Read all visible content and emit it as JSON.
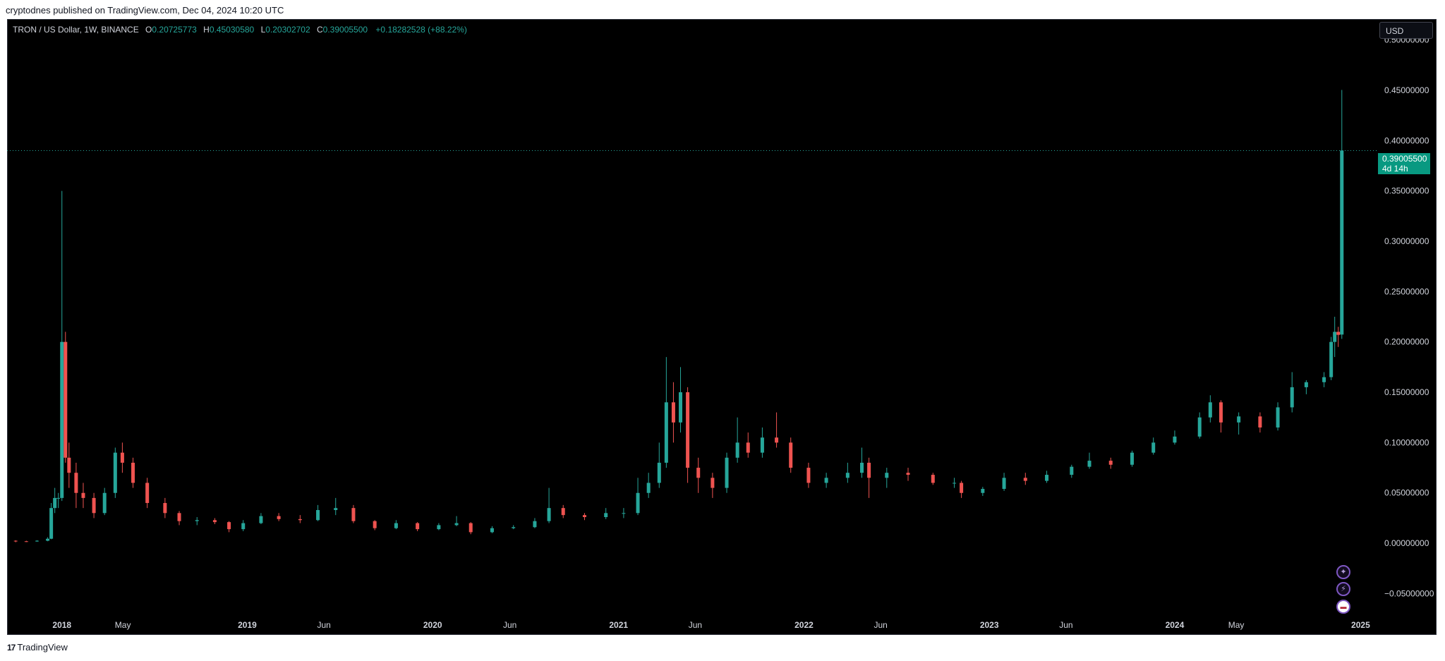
{
  "header": {
    "published_note": "cryptodnes published on TradingView.com, Dec 04, 2024 10:20 UTC"
  },
  "legend": {
    "symbol": "TRON / US Dollar, 1W, BINANCE",
    "o_label": "O",
    "o_value": "0.20725773",
    "h_label": "H",
    "h_value": "0.45030580",
    "l_label": "L",
    "l_value": "0.20302702",
    "c_label": "C",
    "c_value": "0.39005500",
    "change": "+0.18282528 (+88.22%)"
  },
  "currency_button": "USD",
  "price_tag": {
    "price": "0.39005500",
    "countdown": "4d 14h"
  },
  "footer": {
    "brand": "TradingView"
  },
  "side_icons": [
    "sparkle-icon",
    "lightning-icon",
    "us-flag-icon"
  ],
  "colors": {
    "up": "#26a69a",
    "down": "#ef5350",
    "background": "#000000",
    "axis_text": "#d1d4dc",
    "price_tag": "#089981"
  },
  "chart_data": {
    "type": "candlestick",
    "title": "TRON / US Dollar, 1W, BINANCE",
    "interval": "1W",
    "ylim": [
      -0.07,
      0.52
    ],
    "y_tick_values": [
      0.5,
      0.45,
      0.4,
      0.35,
      0.3,
      0.25,
      0.2,
      0.15,
      0.1,
      0.05,
      0.0,
      -0.05
    ],
    "y_tick_labels": [
      "0.50000000",
      "0.45000000",
      "0.40000000",
      "0.35000000",
      "0.30000000",
      "0.25000000",
      "0.20000000",
      "0.15000000",
      "0.10000000",
      "0.05000000",
      "0.00000000",
      "−0.05000000"
    ],
    "x_range": [
      "2017-09-15",
      "2025-01-31"
    ],
    "x_ticks": [
      {
        "date": "2018-01-01",
        "label": "2018",
        "bold": true
      },
      {
        "date": "2018-05-01",
        "label": "May",
        "bold": false
      },
      {
        "date": "2019-01-01",
        "label": "2019",
        "bold": true
      },
      {
        "date": "2019-06-01",
        "label": "Jun",
        "bold": false
      },
      {
        "date": "2020-01-01",
        "label": "2020",
        "bold": true
      },
      {
        "date": "2020-06-01",
        "label": "Jun",
        "bold": false
      },
      {
        "date": "2021-01-01",
        "label": "2021",
        "bold": true
      },
      {
        "date": "2021-06-01",
        "label": "Jun",
        "bold": false
      },
      {
        "date": "2022-01-01",
        "label": "2022",
        "bold": true
      },
      {
        "date": "2022-06-01",
        "label": "Jun",
        "bold": false
      },
      {
        "date": "2023-01-01",
        "label": "2023",
        "bold": true
      },
      {
        "date": "2023-06-01",
        "label": "Jun",
        "bold": false
      },
      {
        "date": "2024-01-01",
        "label": "2024",
        "bold": true
      },
      {
        "date": "2024-05-01",
        "label": "May",
        "bold": false
      },
      {
        "date": "2025-01-01",
        "label": "2025",
        "bold": true
      }
    ],
    "last_price": 0.390055,
    "series": [
      {
        "t": "2017-10-02",
        "o": 0.0025,
        "h": 0.003,
        "l": 0.001,
        "c": 0.002
      },
      {
        "t": "2017-10-23",
        "o": 0.002,
        "h": 0.0025,
        "l": 0.0012,
        "c": 0.0018
      },
      {
        "t": "2017-11-13",
        "o": 0.0018,
        "h": 0.003,
        "l": 0.0015,
        "c": 0.0025
      },
      {
        "t": "2017-12-04",
        "o": 0.0025,
        "h": 0.006,
        "l": 0.002,
        "c": 0.0045
      },
      {
        "t": "2017-12-11",
        "o": 0.0045,
        "h": 0.04,
        "l": 0.004,
        "c": 0.035
      },
      {
        "t": "2017-12-18",
        "o": 0.035,
        "h": 0.055,
        "l": 0.03,
        "c": 0.045
      },
      {
        "t": "2017-12-25",
        "o": 0.045,
        "h": 0.05,
        "l": 0.035,
        "c": 0.045
      },
      {
        "t": "2018-01-01",
        "o": 0.045,
        "h": 0.35,
        "l": 0.042,
        "c": 0.2
      },
      {
        "t": "2018-01-08",
        "o": 0.2,
        "h": 0.21,
        "l": 0.08,
        "c": 0.085
      },
      {
        "t": "2018-01-15",
        "o": 0.085,
        "h": 0.1,
        "l": 0.055,
        "c": 0.07
      },
      {
        "t": "2018-01-29",
        "o": 0.07,
        "h": 0.08,
        "l": 0.035,
        "c": 0.05
      },
      {
        "t": "2018-02-12",
        "o": 0.05,
        "h": 0.06,
        "l": 0.035,
        "c": 0.045
      },
      {
        "t": "2018-03-05",
        "o": 0.045,
        "h": 0.05,
        "l": 0.025,
        "c": 0.03
      },
      {
        "t": "2018-03-26",
        "o": 0.03,
        "h": 0.055,
        "l": 0.028,
        "c": 0.05
      },
      {
        "t": "2018-04-16",
        "o": 0.05,
        "h": 0.095,
        "l": 0.045,
        "c": 0.09
      },
      {
        "t": "2018-04-30",
        "o": 0.09,
        "h": 0.1,
        "l": 0.07,
        "c": 0.08
      },
      {
        "t": "2018-05-21",
        "o": 0.08,
        "h": 0.085,
        "l": 0.055,
        "c": 0.06
      },
      {
        "t": "2018-06-18",
        "o": 0.06,
        "h": 0.065,
        "l": 0.035,
        "c": 0.04
      },
      {
        "t": "2018-07-23",
        "o": 0.04,
        "h": 0.045,
        "l": 0.025,
        "c": 0.03
      },
      {
        "t": "2018-08-20",
        "o": 0.03,
        "h": 0.032,
        "l": 0.018,
        "c": 0.022
      },
      {
        "t": "2018-09-24",
        "o": 0.022,
        "h": 0.026,
        "l": 0.018,
        "c": 0.023
      },
      {
        "t": "2018-10-29",
        "o": 0.023,
        "h": 0.025,
        "l": 0.019,
        "c": 0.021
      },
      {
        "t": "2018-11-26",
        "o": 0.021,
        "h": 0.022,
        "l": 0.011,
        "c": 0.014
      },
      {
        "t": "2018-12-24",
        "o": 0.014,
        "h": 0.023,
        "l": 0.012,
        "c": 0.02
      },
      {
        "t": "2019-01-28",
        "o": 0.02,
        "h": 0.03,
        "l": 0.019,
        "c": 0.027
      },
      {
        "t": "2019-03-04",
        "o": 0.027,
        "h": 0.03,
        "l": 0.022,
        "c": 0.024
      },
      {
        "t": "2019-04-15",
        "o": 0.024,
        "h": 0.028,
        "l": 0.02,
        "c": 0.023
      },
      {
        "t": "2019-05-20",
        "o": 0.023,
        "h": 0.038,
        "l": 0.022,
        "c": 0.033
      },
      {
        "t": "2019-06-24",
        "o": 0.033,
        "h": 0.045,
        "l": 0.028,
        "c": 0.035
      },
      {
        "t": "2019-07-29",
        "o": 0.035,
        "h": 0.038,
        "l": 0.02,
        "c": 0.022
      },
      {
        "t": "2019-09-09",
        "o": 0.022,
        "h": 0.023,
        "l": 0.013,
        "c": 0.015
      },
      {
        "t": "2019-10-21",
        "o": 0.015,
        "h": 0.023,
        "l": 0.014,
        "c": 0.02
      },
      {
        "t": "2019-12-02",
        "o": 0.02,
        "h": 0.021,
        "l": 0.012,
        "c": 0.014
      },
      {
        "t": "2020-01-13",
        "o": 0.014,
        "h": 0.02,
        "l": 0.013,
        "c": 0.018
      },
      {
        "t": "2020-02-17",
        "o": 0.018,
        "h": 0.027,
        "l": 0.017,
        "c": 0.02
      },
      {
        "t": "2020-03-16",
        "o": 0.02,
        "h": 0.021,
        "l": 0.009,
        "c": 0.011
      },
      {
        "t": "2020-04-27",
        "o": 0.011,
        "h": 0.017,
        "l": 0.01,
        "c": 0.015
      },
      {
        "t": "2020-06-08",
        "o": 0.015,
        "h": 0.018,
        "l": 0.014,
        "c": 0.016
      },
      {
        "t": "2020-07-20",
        "o": 0.016,
        "h": 0.025,
        "l": 0.015,
        "c": 0.022
      },
      {
        "t": "2020-08-17",
        "o": 0.022,
        "h": 0.055,
        "l": 0.02,
        "c": 0.035
      },
      {
        "t": "2020-09-14",
        "o": 0.035,
        "h": 0.038,
        "l": 0.025,
        "c": 0.028
      },
      {
        "t": "2020-10-26",
        "o": 0.028,
        "h": 0.03,
        "l": 0.023,
        "c": 0.026
      },
      {
        "t": "2020-12-07",
        "o": 0.026,
        "h": 0.035,
        "l": 0.024,
        "c": 0.03
      },
      {
        "t": "2021-01-11",
        "o": 0.03,
        "h": 0.035,
        "l": 0.025,
        "c": 0.03
      },
      {
        "t": "2021-02-08",
        "o": 0.03,
        "h": 0.065,
        "l": 0.028,
        "c": 0.05
      },
      {
        "t": "2021-03-01",
        "o": 0.05,
        "h": 0.07,
        "l": 0.045,
        "c": 0.06
      },
      {
        "t": "2021-03-22",
        "o": 0.06,
        "h": 0.1,
        "l": 0.055,
        "c": 0.08
      },
      {
        "t": "2021-04-05",
        "o": 0.08,
        "h": 0.185,
        "l": 0.075,
        "c": 0.14
      },
      {
        "t": "2021-04-19",
        "o": 0.14,
        "h": 0.16,
        "l": 0.1,
        "c": 0.12
      },
      {
        "t": "2021-05-03",
        "o": 0.12,
        "h": 0.175,
        "l": 0.11,
        "c": 0.15
      },
      {
        "t": "2021-05-17",
        "o": 0.15,
        "h": 0.155,
        "l": 0.06,
        "c": 0.075
      },
      {
        "t": "2021-06-07",
        "o": 0.075,
        "h": 0.085,
        "l": 0.05,
        "c": 0.065
      },
      {
        "t": "2021-07-05",
        "o": 0.065,
        "h": 0.07,
        "l": 0.045,
        "c": 0.055
      },
      {
        "t": "2021-08-02",
        "o": 0.055,
        "h": 0.09,
        "l": 0.05,
        "c": 0.085
      },
      {
        "t": "2021-08-23",
        "o": 0.085,
        "h": 0.125,
        "l": 0.08,
        "c": 0.1
      },
      {
        "t": "2021-09-13",
        "o": 0.1,
        "h": 0.11,
        "l": 0.085,
        "c": 0.09
      },
      {
        "t": "2021-10-11",
        "o": 0.09,
        "h": 0.115,
        "l": 0.085,
        "c": 0.105
      },
      {
        "t": "2021-11-08",
        "o": 0.105,
        "h": 0.13,
        "l": 0.095,
        "c": 0.1
      },
      {
        "t": "2021-12-06",
        "o": 0.1,
        "h": 0.105,
        "l": 0.07,
        "c": 0.075
      },
      {
        "t": "2022-01-10",
        "o": 0.075,
        "h": 0.08,
        "l": 0.055,
        "c": 0.06
      },
      {
        "t": "2022-02-14",
        "o": 0.06,
        "h": 0.07,
        "l": 0.055,
        "c": 0.065
      },
      {
        "t": "2022-03-28",
        "o": 0.065,
        "h": 0.08,
        "l": 0.06,
        "c": 0.07
      },
      {
        "t": "2022-04-25",
        "o": 0.07,
        "h": 0.095,
        "l": 0.065,
        "c": 0.08
      },
      {
        "t": "2022-05-09",
        "o": 0.08,
        "h": 0.085,
        "l": 0.045,
        "c": 0.065
      },
      {
        "t": "2022-06-13",
        "o": 0.065,
        "h": 0.075,
        "l": 0.055,
        "c": 0.07
      },
      {
        "t": "2022-07-25",
        "o": 0.07,
        "h": 0.075,
        "l": 0.062,
        "c": 0.068
      },
      {
        "t": "2022-09-12",
        "o": 0.068,
        "h": 0.07,
        "l": 0.058,
        "c": 0.06
      },
      {
        "t": "2022-10-24",
        "o": 0.06,
        "h": 0.065,
        "l": 0.055,
        "c": 0.06
      },
      {
        "t": "2022-11-07",
        "o": 0.06,
        "h": 0.062,
        "l": 0.045,
        "c": 0.05
      },
      {
        "t": "2022-12-19",
        "o": 0.05,
        "h": 0.056,
        "l": 0.047,
        "c": 0.054
      },
      {
        "t": "2023-01-30",
        "o": 0.054,
        "h": 0.07,
        "l": 0.052,
        "c": 0.065
      },
      {
        "t": "2023-03-13",
        "o": 0.065,
        "h": 0.07,
        "l": 0.058,
        "c": 0.062
      },
      {
        "t": "2023-04-24",
        "o": 0.062,
        "h": 0.072,
        "l": 0.06,
        "c": 0.068
      },
      {
        "t": "2023-06-12",
        "o": 0.068,
        "h": 0.078,
        "l": 0.065,
        "c": 0.076
      },
      {
        "t": "2023-07-17",
        "o": 0.076,
        "h": 0.09,
        "l": 0.074,
        "c": 0.082
      },
      {
        "t": "2023-08-28",
        "o": 0.082,
        "h": 0.085,
        "l": 0.074,
        "c": 0.078
      },
      {
        "t": "2023-10-09",
        "o": 0.078,
        "h": 0.092,
        "l": 0.076,
        "c": 0.09
      },
      {
        "t": "2023-11-20",
        "o": 0.09,
        "h": 0.105,
        "l": 0.088,
        "c": 0.1
      },
      {
        "t": "2024-01-01",
        "o": 0.1,
        "h": 0.112,
        "l": 0.098,
        "c": 0.106
      },
      {
        "t": "2024-02-19",
        "o": 0.106,
        "h": 0.13,
        "l": 0.104,
        "c": 0.125
      },
      {
        "t": "2024-03-11",
        "o": 0.125,
        "h": 0.147,
        "l": 0.12,
        "c": 0.14
      },
      {
        "t": "2024-04-01",
        "o": 0.14,
        "h": 0.142,
        "l": 0.11,
        "c": 0.12
      },
      {
        "t": "2024-05-06",
        "o": 0.12,
        "h": 0.13,
        "l": 0.108,
        "c": 0.126
      },
      {
        "t": "2024-06-17",
        "o": 0.126,
        "h": 0.13,
        "l": 0.11,
        "c": 0.115
      },
      {
        "t": "2024-07-22",
        "o": 0.115,
        "h": 0.14,
        "l": 0.112,
        "c": 0.135
      },
      {
        "t": "2024-08-19",
        "o": 0.135,
        "h": 0.17,
        "l": 0.13,
        "c": 0.155
      },
      {
        "t": "2024-09-16",
        "o": 0.155,
        "h": 0.162,
        "l": 0.148,
        "c": 0.16
      },
      {
        "t": "2024-10-21",
        "o": 0.16,
        "h": 0.17,
        "l": 0.155,
        "c": 0.165
      },
      {
        "t": "2024-11-04",
        "o": 0.165,
        "h": 0.205,
        "l": 0.162,
        "c": 0.2
      },
      {
        "t": "2024-11-11",
        "o": 0.2,
        "h": 0.225,
        "l": 0.185,
        "c": 0.21
      },
      {
        "t": "2024-11-18",
        "o": 0.21,
        "h": 0.215,
        "l": 0.195,
        "c": 0.207
      },
      {
        "t": "2024-11-25",
        "o": 0.2073,
        "h": 0.4503,
        "l": 0.203,
        "c": 0.3901
      }
    ]
  }
}
